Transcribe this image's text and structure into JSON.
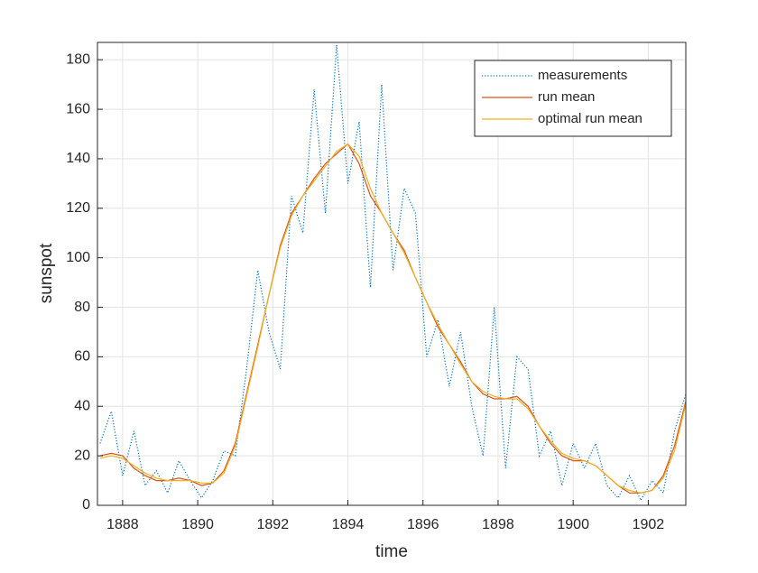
{
  "chart_data": {
    "type": "line",
    "xlabel": "time",
    "ylabel": "sunspot",
    "x": [
      1887.4,
      1887.7,
      1888.0,
      1888.3,
      1888.6,
      1888.9,
      1889.2,
      1889.5,
      1889.8,
      1890.1,
      1890.4,
      1890.7,
      1891.0,
      1891.3,
      1891.6,
      1891.9,
      1892.2,
      1892.5,
      1892.8,
      1893.1,
      1893.4,
      1893.7,
      1894.0,
      1894.3,
      1894.6,
      1894.9,
      1895.2,
      1895.5,
      1895.8,
      1896.1,
      1896.4,
      1896.7,
      1897.0,
      1897.3,
      1897.6,
      1897.9,
      1898.2,
      1898.5,
      1898.8,
      1899.1,
      1899.4,
      1899.7,
      1900.0,
      1900.3,
      1900.6,
      1900.9,
      1901.2,
      1901.5,
      1901.8,
      1902.1,
      1902.4,
      1902.7,
      1903.0
    ],
    "series": [
      {
        "name": "measurements",
        "color": "#0072bd",
        "style": "dotted",
        "values": [
          25,
          38,
          12,
          30,
          8,
          14,
          5,
          18,
          10,
          3,
          10,
          22,
          20,
          55,
          95,
          70,
          55,
          125,
          110,
          168,
          118,
          186,
          130,
          155,
          88,
          170,
          95,
          128,
          118,
          60,
          75,
          48,
          70,
          40,
          20,
          80,
          15,
          60,
          55,
          20,
          30,
          8,
          25,
          15,
          25,
          8,
          3,
          12,
          2,
          10,
          5,
          30,
          45
        ]
      },
      {
        "name": "run mean",
        "color": "#d95319",
        "style": "solid",
        "values": [
          20,
          21,
          20,
          15,
          12,
          10,
          10,
          11,
          10,
          8,
          9,
          14,
          25,
          45,
          65,
          85,
          105,
          118,
          125,
          132,
          138,
          142,
          146,
          138,
          125,
          118,
          110,
          103,
          92,
          82,
          72,
          65,
          58,
          50,
          45,
          43,
          43,
          44,
          40,
          32,
          25,
          20,
          18,
          18,
          16,
          12,
          8,
          5,
          5,
          6,
          12,
          24,
          42
        ]
      },
      {
        "name": "optimal run mean",
        "color": "#edb120",
        "style": "solid",
        "values": [
          19,
          20,
          19,
          16,
          13,
          11,
          10,
          10,
          10,
          9,
          9,
          13,
          24,
          44,
          64,
          85,
          104,
          117,
          125,
          131,
          137,
          143,
          146,
          141,
          128,
          118,
          110,
          102,
          92,
          82,
          73,
          65,
          57,
          50,
          46,
          44,
          43,
          43,
          39,
          32,
          26,
          21,
          19,
          18,
          16,
          12,
          8,
          6,
          5,
          6,
          11,
          22,
          41
        ]
      }
    ],
    "xlim": [
      1887.33,
      1903.0
    ],
    "xticks": [
      1888,
      1890,
      1892,
      1894,
      1896,
      1898,
      1900,
      1902
    ],
    "ylim": [
      0,
      187
    ],
    "yticks": [
      0,
      20,
      40,
      60,
      80,
      100,
      120,
      140,
      160,
      180
    ],
    "grid": true,
    "legend": "top-right"
  }
}
